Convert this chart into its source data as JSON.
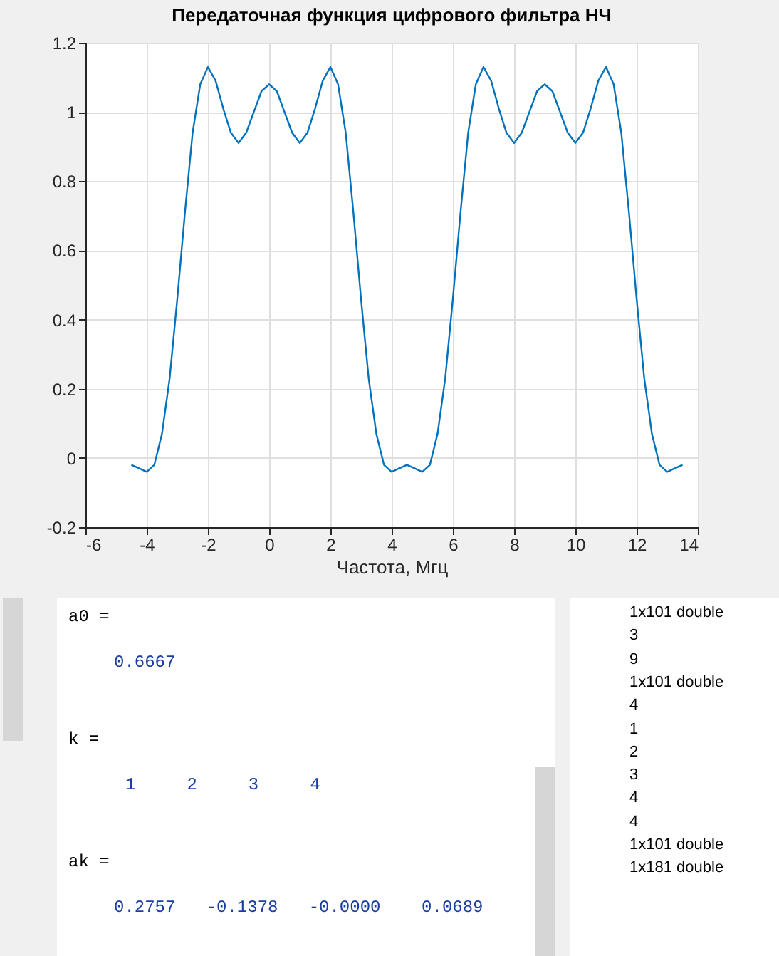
{
  "chart_data": {
    "type": "line",
    "title": "Передаточная функция цифрового фильтра НЧ",
    "xlabel": "Частота, Мгц",
    "x": [
      -4.5,
      -4.25,
      -4,
      -3.75,
      -3.5,
      -3.25,
      -3,
      -2.75,
      -2.5,
      -2.25,
      -2,
      -1.75,
      -1.5,
      -1.25,
      -1,
      -0.75,
      -0.5,
      -0.25,
      0,
      0.25,
      0.5,
      0.75,
      1,
      1.25,
      1.5,
      1.75,
      2,
      2.25,
      2.5,
      2.75,
      3,
      3.25,
      3.5,
      3.75,
      4,
      4.25,
      4.5,
      4.75,
      5,
      5.25,
      5.5,
      5.75,
      6,
      6.25,
      6.5,
      6.75,
      7,
      7.25,
      7.5,
      7.75,
      8,
      8.25,
      8.5,
      8.75,
      9,
      9.25,
      9.5,
      9.75,
      10,
      10.25,
      10.5,
      10.75,
      11,
      11.25,
      11.5,
      11.75,
      12,
      12.25,
      12.5,
      12.75,
      13,
      13.25,
      13.5
    ],
    "series": [
      {
        "color": "#0072bd",
        "values": [
          -0.02,
          -0.03,
          -0.04,
          -0.02,
          0.07,
          0.23,
          0.46,
          0.71,
          0.94,
          1.08,
          1.13,
          1.09,
          1.01,
          0.94,
          0.91,
          0.94,
          1.0,
          1.06,
          1.08,
          1.06,
          1.0,
          0.94,
          0.91,
          0.94,
          1.01,
          1.09,
          1.13,
          1.08,
          0.94,
          0.71,
          0.46,
          0.23,
          0.07,
          -0.02,
          -0.04,
          -0.03,
          -0.02,
          -0.03,
          -0.04,
          -0.02,
          0.07,
          0.23,
          0.46,
          0.71,
          0.94,
          1.08,
          1.13,
          1.09,
          1.01,
          0.94,
          0.91,
          0.94,
          1.0,
          1.06,
          1.08,
          1.06,
          1.0,
          0.94,
          0.91,
          0.94,
          1.01,
          1.09,
          1.13,
          1.08,
          0.94,
          0.71,
          0.46,
          0.23,
          0.07,
          -0.02,
          -0.04,
          -0.03,
          -0.02
        ]
      }
    ],
    "xlim": [
      -6,
      14
    ],
    "xticks": [
      -6,
      -4,
      -2,
      0,
      2,
      4,
      6,
      8,
      10,
      12,
      14
    ],
    "ylim": [
      -0.2,
      1.2
    ],
    "yticks": [
      -0.2,
      0,
      0.2,
      0.4,
      0.6,
      0.8,
      1,
      1.2
    ],
    "grid": true,
    "marker": "none",
    "line_style": "solid",
    "annotations": [
      "a0 =",
      "0.6667",
      "k =",
      "1     2     3     4",
      "ak =",
      "0.2757   -0.1378   -0.0000    0.0689",
      "1x101 double",
      "3",
      "9",
      "1x101 double",
      "4",
      "1",
      "2",
      "3",
      "4",
      "4",
      "1x101 double",
      "1x181 double"
    ]
  }
}
